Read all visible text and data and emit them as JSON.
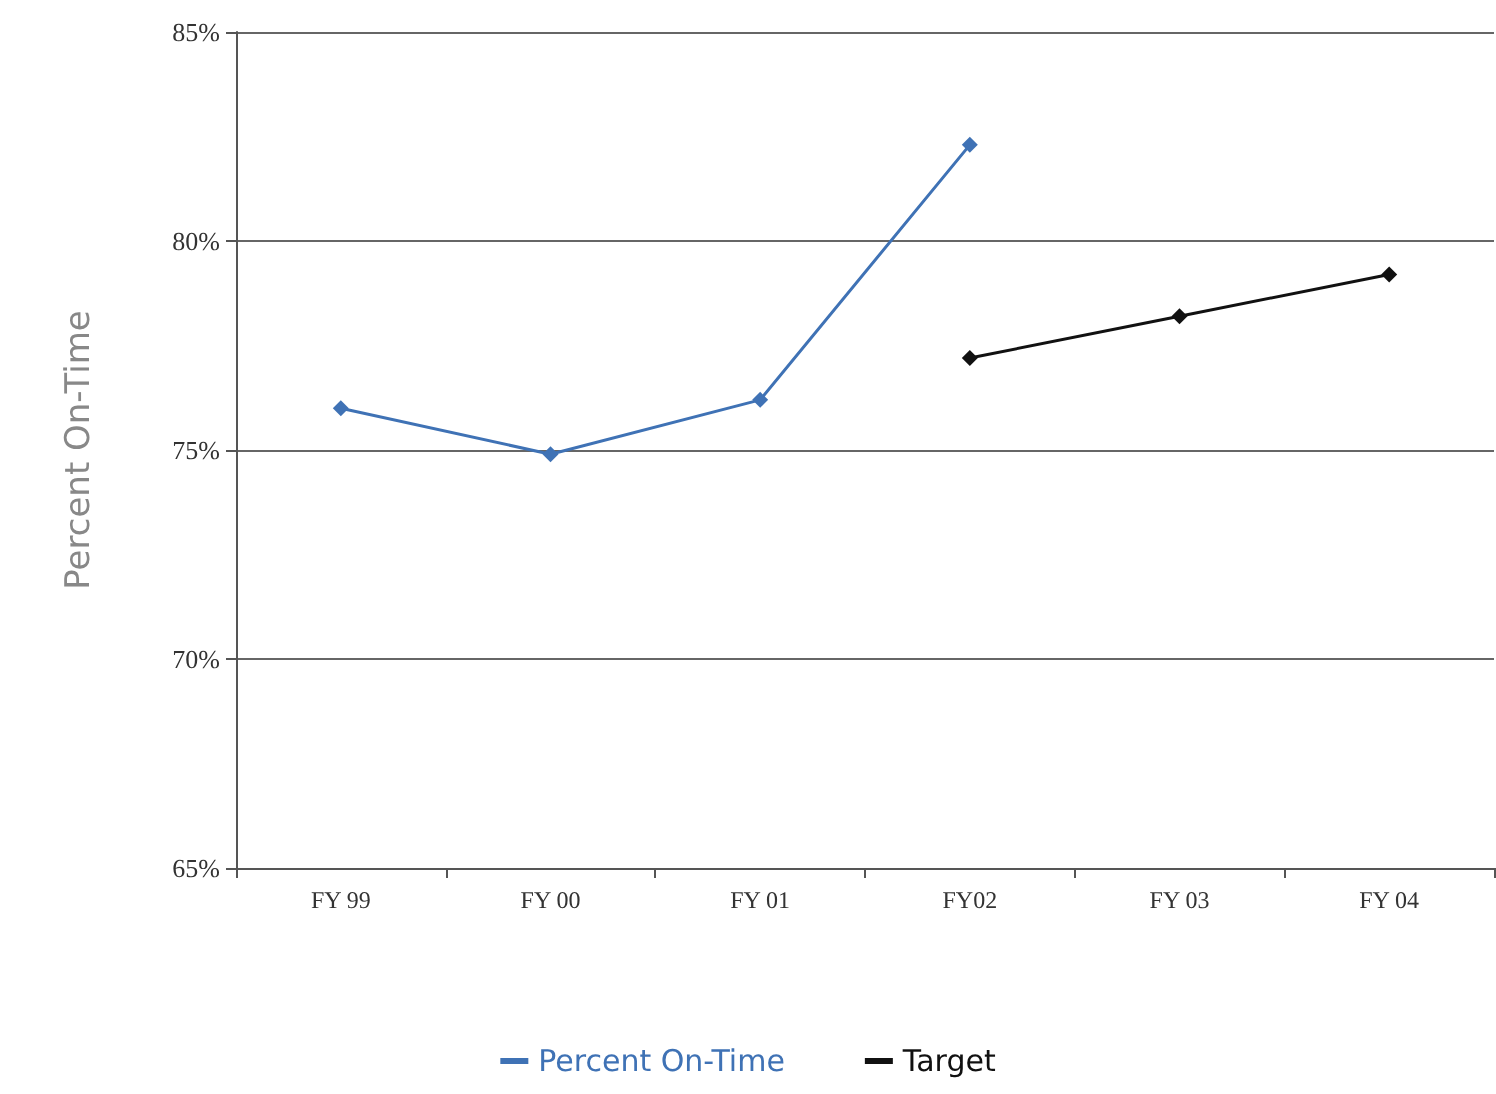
{
  "chart_data": {
    "type": "line",
    "ylabel": "Percent On-Time",
    "categories": [
      "FY 99",
      "FY 00",
      "FY 01",
      "FY02",
      "FY 03",
      "FY 04"
    ],
    "series": [
      {
        "name": "Percent On-Time",
        "color": "#3f72b5",
        "values": [
          76.0,
          74.9,
          76.2,
          82.3,
          null,
          null
        ]
      },
      {
        "name": "Target",
        "color": "#111111",
        "values": [
          null,
          null,
          null,
          77.2,
          78.2,
          79.2
        ]
      }
    ],
    "ylim": [
      65,
      85
    ],
    "yticks": [
      {
        "value": 65,
        "label": "65%"
      },
      {
        "value": 70,
        "label": "70%"
      },
      {
        "value": 75,
        "label": "75%"
      },
      {
        "value": 80,
        "label": "80%"
      },
      {
        "value": 85,
        "label": "85%"
      }
    ],
    "grid": "y",
    "legend": "bottom",
    "marker": "diamond",
    "line_style": "solid"
  }
}
